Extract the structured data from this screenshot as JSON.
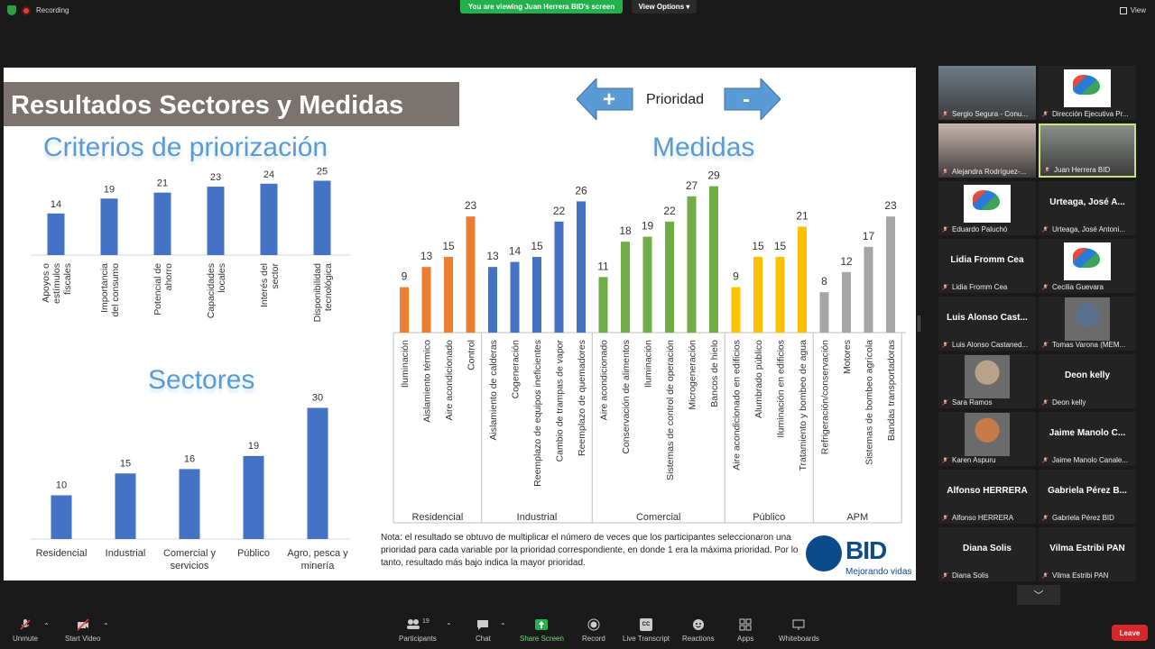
{
  "top": {
    "recording": "Recording",
    "viewing": "You are viewing Juan Herrera BID's screen",
    "view_options": "View Options",
    "view": "View"
  },
  "slide": {
    "title": "Resultados Sectores y Medidas",
    "priority_label": "Prioridad",
    "plus": "+",
    "minus": "-",
    "criteria_heading": "Criterios de priorización",
    "sectors_heading": "Sectores",
    "measures_heading": "Medidas",
    "note": "Nota: el resultado se obtuvo de multiplicar el número de veces que los participantes seleccionaron una prioridad para cada variable por la prioridad correspondiente, en donde 1 era la máxima prioridad. Por lo tanto, resultado más bajo indica la mayor prioridad.",
    "logo_word": "BID",
    "logo_tagline": "Mejorando vidas"
  },
  "chart_data": [
    {
      "type": "bar",
      "title": "Criterios de priorización",
      "categories": [
        "Apoyos o estímulos fiscales",
        "Importancia del consumo",
        "Potencial de ahorro",
        "Capacidades locales",
        "Interés del sector",
        "Disponibilidad tecnológica"
      ],
      "values": [
        14,
        19,
        21,
        23,
        24,
        25
      ],
      "color": "#4472c4"
    },
    {
      "type": "bar",
      "title": "Sectores",
      "categories": [
        "Residencial",
        "Industrial",
        "Comercial y servicios",
        "Público",
        "Agro, pesca y minería"
      ],
      "values": [
        10,
        15,
        16,
        19,
        30
      ],
      "color": "#4472c4"
    },
    {
      "type": "bar",
      "title": "Medidas",
      "groups": [
        {
          "name": "Residencial",
          "color": "#ed7d31",
          "categories": [
            "Iluminación",
            "Aislamiento térmico",
            "Aire acondicionado",
            "Control"
          ],
          "values": [
            9,
            13,
            15,
            23
          ]
        },
        {
          "name": "Industrial",
          "color": "#4472c4",
          "categories": [
            "Aislamiento de calderas",
            "Cogeneración",
            "Reemplazo de equipos ineficientes",
            "Cambio de trampas de vapor",
            "Reemplazo de quemadores"
          ],
          "values": [
            13,
            14,
            15,
            22,
            26
          ]
        },
        {
          "name": "Comercial",
          "color": "#70ad47",
          "categories": [
            "Aire acondicionado",
            "Conservación de alimentos",
            "Iluminación",
            "Sistemas de control de operación",
            "Microgeneración",
            "Bancos de hielo"
          ],
          "values": [
            11,
            18,
            19,
            22,
            27,
            29
          ]
        },
        {
          "name": "Público",
          "color": "#ffc000",
          "categories": [
            "Aire acondicionado en edificios",
            "Alumbrado público",
            "Iluminación en edificios",
            "Tratamiento y bombeo de agua"
          ],
          "values": [
            9,
            15,
            15,
            21
          ]
        },
        {
          "name": "APM",
          "color": "#a5a5a5",
          "categories": [
            "Refrigeración/conservación",
            "Motores",
            "Sistemas de bombeo agrícola",
            "Bandas transportadoras"
          ],
          "values": [
            8,
            12,
            17,
            23
          ]
        }
      ]
    }
  ],
  "participants": [
    {
      "name": "Sergio Segura - Conu...",
      "kind": "photo",
      "bg": "#6f7c86"
    },
    {
      "name": "Dirección Ejecutiva Pr...",
      "kind": "logo"
    },
    {
      "name": "Alejandra Rodríguez-...",
      "kind": "photo",
      "bg": "#c9b6ad"
    },
    {
      "name": "Juan Herrera BID",
      "kind": "photo",
      "bg": "#8a8f8a",
      "active": true
    },
    {
      "name": "Eduardo Paluchó",
      "kind": "logo"
    },
    {
      "name": "Urteaga, José Antoni...",
      "kind": "text",
      "center": "Urteaga, José A..."
    },
    {
      "name": "Lidia Fromm Cea",
      "kind": "text",
      "center": "Lidia Fromm Cea"
    },
    {
      "name": "Cecilia Guevara",
      "kind": "logo"
    },
    {
      "name": "Luis Alonso Castaned...",
      "kind": "text",
      "center": "Luis Alonso Cast..."
    },
    {
      "name": "Tomas Varona (MEM...",
      "kind": "photo-small",
      "bg": "#5c6f8c"
    },
    {
      "name": "Sara Ramos",
      "kind": "photo-small",
      "bg": "#b8a38a"
    },
    {
      "name": "Deon kelly",
      "kind": "text",
      "center": "Deon kelly"
    },
    {
      "name": "Karen Aspuru",
      "kind": "photo-small",
      "bg": "#c77b4a"
    },
    {
      "name": "Jaime Manolo Canale...",
      "kind": "text",
      "center": "Jaime Manolo C..."
    },
    {
      "name": "Alfonso HERRERA",
      "kind": "text",
      "center": "Alfonso HERRERA"
    },
    {
      "name": "Gabriela Pérez BID",
      "kind": "text",
      "center": "Gabriela Pérez B..."
    },
    {
      "name": "Diana Solis",
      "kind": "text",
      "center": "Diana Solis"
    },
    {
      "name": "Vilma Estribi PAN",
      "kind": "text",
      "center": "Vilma Estribi PAN"
    }
  ],
  "toolbar": {
    "unmute": "Unmute",
    "start_video": "Start Video",
    "participants": "Participants",
    "participants_count": "19",
    "chat": "Chat",
    "share": "Share Screen",
    "record": "Record",
    "transcript": "Live Transcript",
    "reactions": "Reactions",
    "apps": "Apps",
    "whiteboards": "Whiteboards",
    "leave": "Leave",
    "cc": "CC"
  }
}
